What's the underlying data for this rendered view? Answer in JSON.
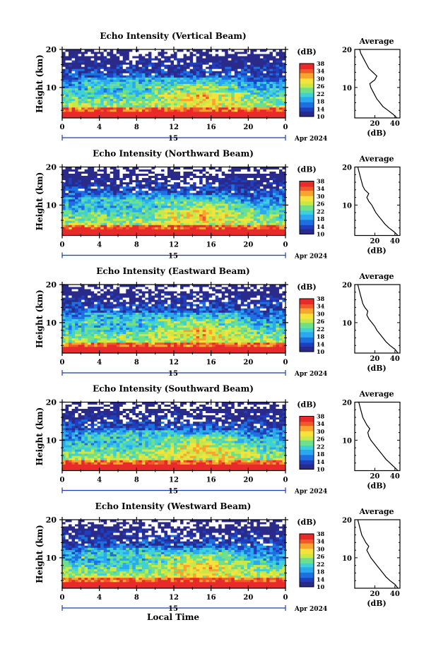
{
  "chart_data": [
    {
      "type": "heatmap",
      "title": "Echo Intensity (Vertical Beam)",
      "ylabel": "Height (km)",
      "ylim": [
        2,
        20
      ],
      "yticks": [
        "20",
        "10"
      ],
      "xlim": [
        0,
        24
      ],
      "xticks": [
        "0",
        "4",
        "8",
        "12",
        "16",
        "20",
        "0"
      ],
      "date_label": "15",
      "month_label": "Apr 2024",
      "colorbar_label": "(dB)",
      "colorbar_ticks": [
        "38",
        "34",
        "30",
        "26",
        "22",
        "18",
        "14",
        "10"
      ],
      "clim": [
        10,
        38
      ],
      "profile": {
        "title": "Average",
        "xlabel": "(dB)",
        "xticks": [
          "20",
          "40"
        ],
        "xlim": [
          0,
          45
        ],
        "ylim": [
          2,
          20
        ],
        "yticks": [
          "20",
          "10"
        ],
        "x": [
          42,
          38,
          33,
          28,
          25,
          22,
          20,
          18,
          16,
          15,
          20,
          22,
          18,
          14,
          12,
          10,
          8,
          6,
          5,
          4
        ],
        "y": [
          2,
          3,
          4,
          5,
          6,
          7,
          8,
          9,
          10,
          11,
          12,
          13,
          14,
          15,
          16,
          17,
          18,
          19,
          20,
          20.5
        ]
      }
    },
    {
      "type": "heatmap",
      "title": "Echo Intensity (Northward Beam)",
      "ylabel": "Height (km)",
      "ylim": [
        2,
        20
      ],
      "yticks": [
        "20",
        "10"
      ],
      "xlim": [
        0,
        24
      ],
      "xticks": [
        "0",
        "4",
        "8",
        "12",
        "16",
        "20",
        "0"
      ],
      "date_label": "15",
      "month_label": "Apr 2024",
      "colorbar_label": "(dB)",
      "colorbar_ticks": [
        "38",
        "34",
        "30",
        "26",
        "22",
        "18",
        "14",
        "10"
      ],
      "clim": [
        10,
        38
      ],
      "profile": {
        "title": "Average",
        "xlabel": "(dB)",
        "xticks": [
          "20",
          "40"
        ],
        "xlim": [
          0,
          45
        ],
        "ylim": [
          2,
          20
        ],
        "yticks": [
          "20",
          "10"
        ],
        "x": [
          43,
          39,
          34,
          30,
          27,
          24,
          21,
          19,
          17,
          14,
          12,
          14,
          10,
          8,
          7,
          6,
          5,
          4,
          3,
          3
        ],
        "y": [
          2,
          3,
          4,
          5,
          6,
          7,
          8,
          9,
          10,
          11,
          12,
          13,
          14,
          15,
          16,
          17,
          18,
          19,
          20,
          20.5
        ]
      }
    },
    {
      "type": "heatmap",
      "title": "Echo Intensity (Eastward Beam)",
      "ylabel": "Height (km)",
      "ylim": [
        2,
        20
      ],
      "yticks": [
        "20",
        "10"
      ],
      "xlim": [
        0,
        24
      ],
      "xticks": [
        "0",
        "4",
        "8",
        "12",
        "16",
        "20",
        "0"
      ],
      "date_label": "15",
      "month_label": "Apr 2024",
      "colorbar_label": "(dB)",
      "colorbar_ticks": [
        "38",
        "34",
        "30",
        "26",
        "22",
        "18",
        "14",
        "10"
      ],
      "clim": [
        10,
        38
      ],
      "profile": {
        "title": "Average",
        "xlabel": "(dB)",
        "xticks": [
          "20",
          "40"
        ],
        "xlim": [
          0,
          45
        ],
        "ylim": [
          2,
          20
        ],
        "yticks": [
          "20",
          "10"
        ],
        "x": [
          43,
          40,
          35,
          31,
          28,
          25,
          22,
          20,
          17,
          14,
          12,
          13,
          10,
          8,
          7,
          6,
          5,
          4,
          3,
          3
        ],
        "y": [
          2,
          3,
          4,
          5,
          6,
          7,
          8,
          9,
          10,
          11,
          12,
          13,
          14,
          15,
          16,
          17,
          18,
          19,
          20,
          20.5
        ]
      }
    },
    {
      "type": "heatmap",
      "title": "Echo Intensity (Southward Beam)",
      "ylabel": "Height (km)",
      "ylim": [
        2,
        20
      ],
      "yticks": [
        "20",
        "10"
      ],
      "xlim": [
        0,
        24
      ],
      "xticks": [
        "0",
        "4",
        "8",
        "12",
        "16",
        "20",
        "0"
      ],
      "date_label": "15",
      "month_label": "Apr 2024",
      "colorbar_label": "(dB)",
      "colorbar_ticks": [
        "38",
        "34",
        "30",
        "26",
        "22",
        "18",
        "14",
        "10"
      ],
      "clim": [
        10,
        38
      ],
      "profile": {
        "title": "Average",
        "xlabel": "(dB)",
        "xticks": [
          "20",
          "40"
        ],
        "xlim": [
          0,
          45
        ],
        "ylim": [
          2,
          20
        ],
        "yticks": [
          "20",
          "10"
        ],
        "x": [
          43,
          39,
          35,
          31,
          28,
          25,
          22,
          19,
          16,
          14,
          13,
          15,
          12,
          10,
          8,
          7,
          6,
          5,
          4,
          3
        ],
        "y": [
          2,
          3,
          4,
          5,
          6,
          7,
          8,
          9,
          10,
          11,
          12,
          13,
          14,
          15,
          16,
          17,
          18,
          19,
          20,
          20.5
        ]
      }
    },
    {
      "type": "heatmap",
      "title": "Echo Intensity (Westward Beam)",
      "ylabel": "Height (km)",
      "ylim": [
        2,
        20
      ],
      "yticks": [
        "20",
        "10"
      ],
      "xlim": [
        0,
        24
      ],
      "xticks": [
        "0",
        "4",
        "8",
        "12",
        "16",
        "20",
        "0"
      ],
      "date_label": "15",
      "month_label": "Apr 2024",
      "colorbar_label": "(dB)",
      "colorbar_ticks": [
        "38",
        "34",
        "30",
        "26",
        "22",
        "18",
        "14",
        "10"
      ],
      "clim": [
        10,
        38
      ],
      "profile": {
        "title": "Average",
        "xlabel": "(dB)",
        "xticks": [
          "20",
          "40"
        ],
        "xlim": [
          0,
          45
        ],
        "ylim": [
          2,
          20
        ],
        "yticks": [
          "20",
          "10"
        ],
        "x": [
          43,
          40,
          35,
          31,
          28,
          25,
          22,
          19,
          16,
          14,
          12,
          14,
          11,
          9,
          7,
          6,
          5,
          4,
          3,
          3
        ],
        "y": [
          2,
          3,
          4,
          5,
          6,
          7,
          8,
          9,
          10,
          11,
          12,
          13,
          14,
          15,
          16,
          17,
          18,
          19,
          20,
          20.5
        ]
      }
    }
  ],
  "footer": {
    "xlabel": "Local Time"
  },
  "colors": {
    "colormap": [
      "#2a2a8a",
      "#1f3fbf",
      "#1e6fe0",
      "#2aa8f0",
      "#3fd0d8",
      "#6ee08a",
      "#c8e84a",
      "#f6e23a",
      "#f7a52e",
      "#f05a2a",
      "#e82a2a"
    ],
    "line": "#000000"
  }
}
